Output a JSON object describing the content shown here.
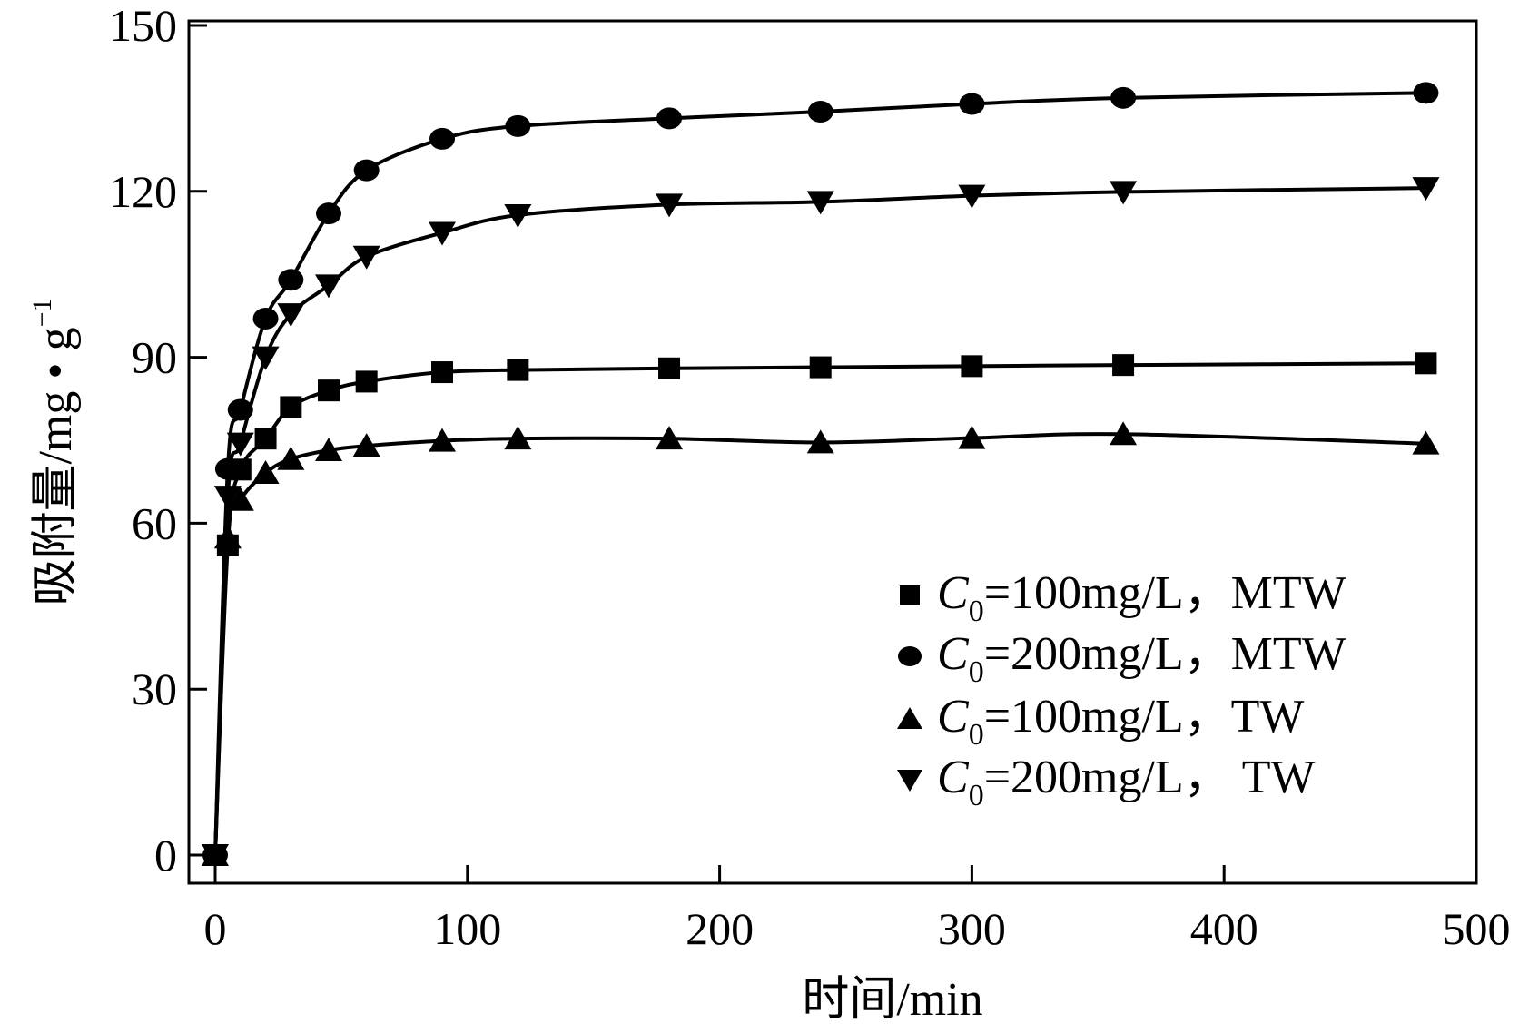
{
  "chart_data": {
    "type": "line",
    "title": "",
    "xlabel": "时间/min",
    "ylabel": "吸附量/mg • g",
    "ylabel_sup": "−1",
    "xlim": [
      -10,
      500
    ],
    "ylim": [
      -5,
      150
    ],
    "xticks": [
      0,
      100,
      200,
      300,
      400,
      500
    ],
    "yticks": [
      0,
      30,
      60,
      90,
      120,
      150
    ],
    "grid": false,
    "legend_placement": "bottom-right",
    "x": [
      0,
      5,
      10,
      20,
      30,
      45,
      60,
      90,
      120,
      180,
      240,
      300,
      360,
      480
    ],
    "series": [
      {
        "name": "=100mg/L，MTW",
        "prefix": "C",
        "sub": "0",
        "marker": "square",
        "values": [
          0,
          56,
          69.7,
          75.3,
          81,
          84,
          85.6,
          87.3,
          87.7,
          88,
          88.2,
          88.4,
          88.6,
          88.9
        ]
      },
      {
        "name": "=200mg/L，MTW",
        "prefix": "C",
        "sub": "0",
        "marker": "circle",
        "values": [
          0,
          69.8,
          80.5,
          97,
          104,
          116,
          123.8,
          129.5,
          131.8,
          133.2,
          134.4,
          135.8,
          136.9,
          137.8
        ]
      },
      {
        "name": "=100mg/L，TW",
        "prefix": "C",
        "sub": "0",
        "marker": "triangle-up",
        "values": [
          0,
          57.4,
          64.2,
          69.1,
          71.6,
          73.2,
          74,
          74.9,
          75.3,
          75.3,
          74.6,
          75.4,
          76.1,
          74.4
        ]
      },
      {
        "name": "=200mg/L， TW",
        "prefix": "C",
        "sub": "0",
        "marker": "triangle-down",
        "values": [
          0,
          64.8,
          74.4,
          90,
          97.8,
          103,
          108.2,
          112.5,
          115.7,
          117.6,
          118.1,
          119.2,
          119.9,
          120.6
        ]
      }
    ]
  }
}
